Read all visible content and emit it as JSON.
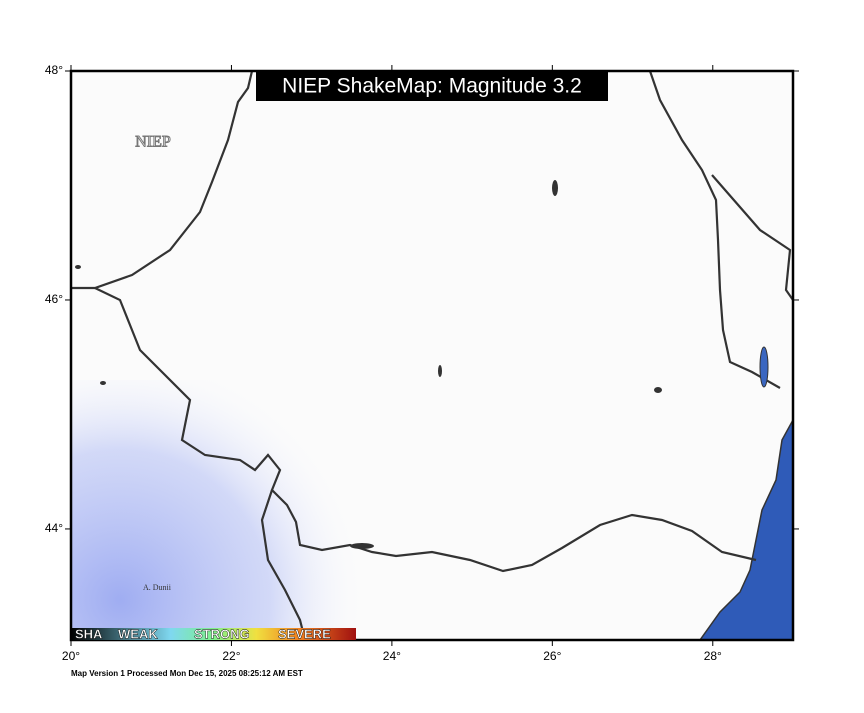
{
  "map": {
    "title": "NIEP ShakeMap: Magnitude 3.2",
    "agency_label": "NIEP",
    "place_label": "A. Dunii",
    "footer": "Map Version 1 Processed Mon Dec 15, 2025 08:25:12 AM EST",
    "legend": [
      "SHA",
      "WEAK",
      "STRONG",
      "SEVERE"
    ],
    "lonlim": [
      20,
      29
    ],
    "latlim": [
      43.03,
      48
    ],
    "lonticks": [
      {
        "value": 20,
        "label": "20°"
      },
      {
        "value": 22,
        "label": "22°"
      },
      {
        "value": 24,
        "label": "24°"
      },
      {
        "value": 26,
        "label": "26°"
      },
      {
        "value": 28,
        "label": "28°"
      }
    ],
    "latticks": [
      {
        "value": 48,
        "label": "48°"
      },
      {
        "value": 46,
        "label": "46°"
      },
      {
        "value": 44,
        "label": "44°"
      }
    ]
  }
}
